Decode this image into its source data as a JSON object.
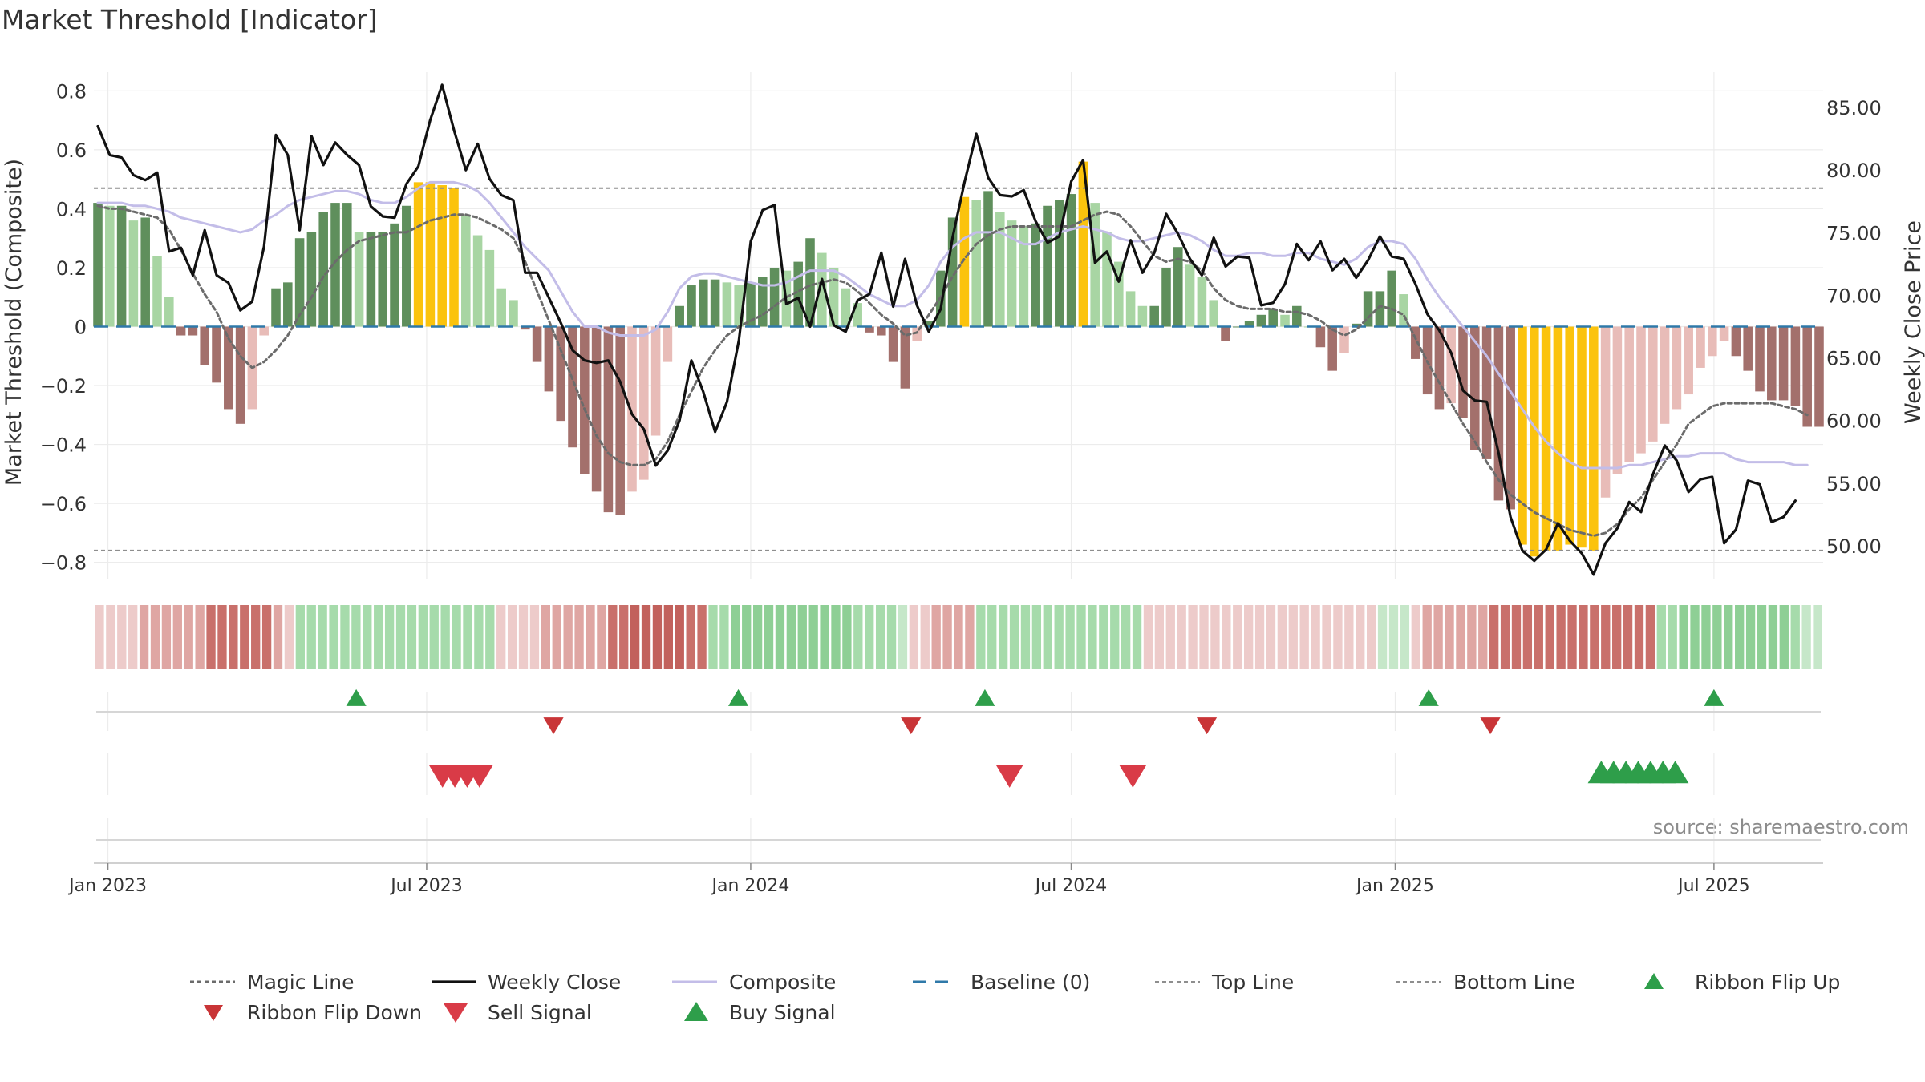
{
  "chart_data": {
    "type": "composite-indicator",
    "title": "Market Threshold [Indicator]",
    "ylabel_left": "Market Threshold (Composite)",
    "ylabel_right": "Weekly Close Price",
    "source": "source: sharemaestro.com",
    "x_range": [
      "2022-12-24",
      "2025-09-01"
    ],
    "x_ticks": [
      {
        "date": "2023-01-01",
        "label": "Jan 2023"
      },
      {
        "date": "2023-07-01",
        "label": "Jul 2023"
      },
      {
        "date": "2024-01-01",
        "label": "Jan 2024"
      },
      {
        "date": "2024-07-01",
        "label": "Jul 2024"
      },
      {
        "date": "2025-01-01",
        "label": "Jan 2025"
      },
      {
        "date": "2025-07-01",
        "label": "Jul 2025"
      }
    ],
    "y_left": {
      "range": [
        -0.85,
        0.85
      ],
      "ticks": [
        0.8,
        0.6,
        0.4,
        0.2,
        0,
        -0.2,
        -0.4,
        -0.6,
        -0.8
      ],
      "tick_labels": [
        "0.8",
        "0.6",
        "0.4",
        "0.2",
        "0",
        "−0.2",
        "−0.4",
        "−0.6",
        "−0.8"
      ]
    },
    "y_right": {
      "range": [
        47.5,
        87.5
      ],
      "ticks": [
        85,
        80,
        75,
        70,
        65,
        60,
        55,
        50
      ],
      "tick_labels": [
        "85.00",
        "80.00",
        "75.00",
        "70.00",
        "65.00",
        "60.00",
        "55.00",
        "50.00"
      ]
    },
    "top_line": 0.47,
    "bottom_line": -0.76,
    "baseline": 0,
    "composite_bars": [
      0.42,
      0.41,
      0.41,
      0.36,
      0.37,
      0.24,
      0.1,
      -0.03,
      -0.03,
      -0.13,
      -0.19,
      -0.28,
      -0.33,
      -0.28,
      -0.03,
      0.13,
      0.15,
      0.3,
      0.32,
      0.39,
      0.42,
      0.42,
      0.32,
      0.32,
      0.32,
      0.35,
      0.41,
      0.49,
      0.49,
      0.48,
      0.47,
      0.38,
      0.31,
      0.26,
      0.13,
      0.09,
      -0.01,
      -0.12,
      -0.22,
      -0.32,
      -0.41,
      -0.5,
      -0.56,
      -0.63,
      -0.64,
      -0.56,
      -0.52,
      -0.37,
      -0.12,
      0.07,
      0.14,
      0.16,
      0.16,
      0.15,
      0.14,
      0.15,
      0.17,
      0.2,
      0.19,
      0.22,
      0.3,
      0.25,
      0.2,
      0.13,
      0.08,
      -0.02,
      -0.03,
      -0.12,
      -0.21,
      -0.05,
      0.02,
      0.19,
      0.37,
      0.44,
      0.43,
      0.46,
      0.39,
      0.36,
      0.34,
      0.35,
      0.41,
      0.43,
      0.45,
      0.56,
      0.42,
      0.32,
      0.22,
      0.12,
      0.07,
      0.07,
      0.2,
      0.27,
      0.21,
      0.17,
      0.09,
      -0.05,
      0,
      0.02,
      0.04,
      0.06,
      0.04,
      0.07,
      0,
      -0.07,
      -0.15,
      -0.09,
      0.01,
      0.12,
      0.12,
      0.19,
      0.11,
      -0.11,
      -0.23,
      -0.28,
      -0.26,
      -0.31,
      -0.42,
      -0.45,
      -0.59,
      -0.62,
      -0.74,
      -0.78,
      -0.76,
      -0.76,
      -0.74,
      -0.75,
      -0.76,
      -0.58,
      -0.5,
      -0.46,
      -0.43,
      -0.39,
      -0.33,
      -0.28,
      -0.23,
      -0.14,
      -0.1,
      -0.05,
      -0.1,
      -0.15,
      -0.22,
      -0.25,
      -0.25,
      -0.27,
      -0.34,
      -0.34
    ],
    "highlight_bars": [
      27,
      28,
      29,
      30,
      73,
      83,
      120,
      121,
      122,
      123,
      124,
      125,
      126
    ],
    "composite_line": [
      0.42,
      0.42,
      0.42,
      0.41,
      0.41,
      0.4,
      0.39,
      0.37,
      0.36,
      0.35,
      0.34,
      0.33,
      0.32,
      0.33,
      0.36,
      0.38,
      0.41,
      0.43,
      0.44,
      0.45,
      0.46,
      0.46,
      0.45,
      0.43,
      0.42,
      0.42,
      0.44,
      0.47,
      0.49,
      0.49,
      0.49,
      0.48,
      0.46,
      0.42,
      0.37,
      0.32,
      0.27,
      0.23,
      0.19,
      0.12,
      0.05,
      0,
      0.0,
      -0.02,
      -0.03,
      -0.03,
      -0.03,
      -0.01,
      0.05,
      0.13,
      0.17,
      0.18,
      0.18,
      0.17,
      0.16,
      0.15,
      0.14,
      0.14,
      0.15,
      0.17,
      0.19,
      0.19,
      0.19,
      0.17,
      0.14,
      0.11,
      0.09,
      0.07,
      0.07,
      0.09,
      0.14,
      0.22,
      0.27,
      0.3,
      0.32,
      0.32,
      0.32,
      0.3,
      0.28,
      0.28,
      0.3,
      0.32,
      0.33,
      0.34,
      0.33,
      0.32,
      0.3,
      0.29,
      0.29,
      0.3,
      0.31,
      0.32,
      0.31,
      0.29,
      0.26,
      0.24,
      0.24,
      0.25,
      0.25,
      0.24,
      0.24,
      0.25,
      0.25,
      0.23,
      0.22,
      0.21,
      0.23,
      0.27,
      0.29,
      0.29,
      0.28,
      0.23,
      0.16,
      0.1,
      0.05,
      0,
      -0.05,
      -0.1,
      -0.16,
      -0.22,
      -0.28,
      -0.34,
      -0.39,
      -0.43,
      -0.46,
      -0.48,
      -0.48,
      -0.48,
      -0.48,
      -0.47,
      -0.47,
      -0.46,
      -0.45,
      -0.44,
      -0.44,
      -0.43,
      -0.43,
      -0.43,
      -0.45,
      -0.46,
      -0.46,
      -0.46,
      -0.46,
      -0.47,
      -0.47
    ],
    "magic_line": [
      0.41,
      0.4,
      0.4,
      0.39,
      0.38,
      0.37,
      0.33,
      0.26,
      0.18,
      0.11,
      0.05,
      -0.04,
      -0.1,
      -0.14,
      -0.12,
      -0.08,
      -0.03,
      0.04,
      0.1,
      0.17,
      0.22,
      0.26,
      0.29,
      0.3,
      0.31,
      0.32,
      0.32,
      0.34,
      0.36,
      0.37,
      0.38,
      0.38,
      0.37,
      0.35,
      0.33,
      0.3,
      0.22,
      0.12,
      0.02,
      -0.08,
      -0.18,
      -0.28,
      -0.37,
      -0.43,
      -0.46,
      -0.47,
      -0.47,
      -0.45,
      -0.39,
      -0.3,
      -0.22,
      -0.14,
      -0.08,
      -0.03,
      0.0,
      0.02,
      0.04,
      0.07,
      0.1,
      0.12,
      0.14,
      0.15,
      0.16,
      0.15,
      0.12,
      0.08,
      0.04,
      0.01,
      -0.03,
      -0.02,
      0.04,
      0.1,
      0.17,
      0.23,
      0.28,
      0.31,
      0.33,
      0.34,
      0.34,
      0.34,
      0.34,
      0.34,
      0.34,
      0.36,
      0.38,
      0.39,
      0.38,
      0.34,
      0.29,
      0.24,
      0.22,
      0.23,
      0.22,
      0.19,
      0.13,
      0.09,
      0.07,
      0.06,
      0.06,
      0.06,
      0.05,
      0.05,
      0.04,
      0.02,
      -0.01,
      -0.03,
      -0.01,
      0.03,
      0.07,
      0.06,
      0.04,
      -0.04,
      -0.12,
      -0.19,
      -0.26,
      -0.33,
      -0.39,
      -0.46,
      -0.52,
      -0.57,
      -0.6,
      -0.63,
      -0.65,
      -0.67,
      -0.69,
      -0.7,
      -0.71,
      -0.7,
      -0.67,
      -0.62,
      -0.58,
      -0.52,
      -0.46,
      -0.4,
      -0.33,
      -0.3,
      -0.27,
      -0.26,
      -0.26,
      -0.26,
      -0.26,
      -0.26,
      -0.27,
      -0.28,
      -0.3
    ],
    "weekly_close": [
      83.5,
      81.2,
      81.0,
      79.6,
      79.2,
      79.8,
      73.5,
      73.8,
      71.6,
      75.2,
      71.6,
      71.0,
      68.8,
      69.5,
      73.9,
      82.8,
      81.2,
      75.2,
      82.7,
      80.4,
      82.2,
      81.2,
      80.4,
      77.1,
      76.3,
      76.2,
      78.9,
      80.3,
      84.0,
      86.8,
      83.2,
      80.0,
      82.1,
      79.3,
      78.0,
      77.6,
      71.8,
      71.8,
      69.8,
      67.8,
      65.6,
      64.8,
      64.6,
      64.8,
      63.1,
      60.5,
      59.3,
      56.4,
      57.6,
      60.0,
      64.8,
      62.3,
      59.1,
      61.5,
      66.4,
      74.3,
      76.8,
      77.2,
      69.3,
      69.8,
      67.5,
      71.3,
      67.6,
      67.1,
      69.6,
      70.1,
      73.4,
      69.1,
      72.9,
      69.2,
      67.1,
      68.9,
      74.6,
      79.0,
      82.9,
      79.4,
      78.0,
      77.9,
      78.4,
      75.9,
      74.2,
      74.7,
      79.1,
      80.8,
      72.6,
      73.5,
      71.1,
      74.4,
      71.8,
      73.4,
      76.5,
      74.9,
      72.9,
      71.6,
      74.6,
      72.3,
      73.1,
      73.0,
      69.2,
      69.4,
      70.9,
      74.1,
      72.8,
      74.3,
      72.0,
      72.9,
      71.4,
      72.8,
      74.7,
      73.1,
      72.9,
      70.9,
      68.5,
      67.2,
      65.4,
      62.4,
      61.6,
      61.5,
      57.4,
      52.3,
      49.6,
      48.8,
      49.7,
      51.8,
      50.4,
      49.4,
      47.7,
      50.2,
      51.4,
      53.5,
      52.7,
      55.7,
      58.0,
      56.8,
      54.3,
      55.3,
      55.5,
      50.2,
      51.3,
      55.2,
      54.9,
      51.9,
      52.3,
      53.6
    ],
    "ribbon": {
      "colors": {
        "red_light": "#edcbca",
        "red_mid": "#dfa6a3",
        "red_dark": "#c9706b",
        "red_deep": "#c2615c",
        "green_light": "#c6e7c9",
        "green_mid": "#a6dbab",
        "green_dark": "#8ecf95"
      },
      "cells": [
        "red_light",
        "red_light",
        "red_light",
        "red_light",
        "red_mid",
        "red_mid",
        "red_mid",
        "red_mid",
        "red_mid",
        "red_mid",
        "red_dark",
        "red_dark",
        "red_dark",
        "red_dark",
        "red_dark",
        "red_dark",
        "red_mid",
        "red_light",
        "green_mid",
        "green_mid",
        "green_mid",
        "green_mid",
        "green_mid",
        "green_mid",
        "green_mid",
        "green_mid",
        "green_mid",
        "green_mid",
        "green_mid",
        "green_mid",
        "green_mid",
        "green_mid",
        "green_mid",
        "green_mid",
        "green_mid",
        "green_mid",
        "red_light",
        "red_light",
        "red_light",
        "red_light",
        "red_mid",
        "red_mid",
        "red_mid",
        "red_mid",
        "red_mid",
        "red_mid",
        "red_dark",
        "red_dark",
        "red_deep",
        "red_deep",
        "red_deep",
        "red_deep",
        "red_deep",
        "red_dark",
        "red_dark",
        "green_mid",
        "green_mid",
        "green_dark",
        "green_dark",
        "green_dark",
        "green_dark",
        "green_dark",
        "green_dark",
        "green_dark",
        "green_dark",
        "green_dark",
        "green_dark",
        "green_dark",
        "green_mid",
        "green_mid",
        "green_mid",
        "green_mid",
        "green_light",
        "red_light",
        "red_light",
        "red_mid",
        "red_mid",
        "red_mid",
        "red_mid",
        "green_mid",
        "green_mid",
        "green_mid",
        "green_mid",
        "green_mid",
        "green_mid",
        "green_mid",
        "green_mid",
        "green_mid",
        "green_mid",
        "green_mid",
        "green_mid",
        "green_mid",
        "green_mid",
        "green_mid",
        "red_light",
        "red_light",
        "red_light",
        "red_light",
        "red_light",
        "red_light",
        "red_light",
        "red_light",
        "red_light",
        "red_light",
        "red_light",
        "red_light",
        "red_light",
        "red_light",
        "red_light",
        "red_light",
        "red_light",
        "red_light",
        "red_light",
        "red_light",
        "red_light",
        "green_light",
        "green_light",
        "green_light",
        "red_light",
        "red_mid",
        "red_mid",
        "red_mid",
        "red_mid",
        "red_mid",
        "red_mid",
        "red_dark",
        "red_dark",
        "red_dark",
        "red_dark",
        "red_dark",
        "red_dark",
        "red_dark",
        "red_dark",
        "red_dark",
        "red_dark",
        "red_dark",
        "red_dark",
        "red_dark",
        "red_dark",
        "red_dark",
        "green_mid",
        "green_mid",
        "green_dark",
        "green_dark",
        "green_dark",
        "green_dark",
        "green_dark",
        "green_dark",
        "green_dark",
        "green_dark",
        "green_dark",
        "green_dark",
        "green_mid",
        "green_light",
        "green_light"
      ]
    },
    "ribbon_flip_up": [
      "2023-05-22",
      "2023-12-25",
      "2024-05-13",
      "2025-01-20",
      "2025-07-01"
    ],
    "ribbon_flip_down": [
      "2023-09-11",
      "2024-04-01",
      "2024-09-16",
      "2025-02-24"
    ],
    "sell_signals": [
      "2023-07-10",
      "2023-07-17",
      "2023-07-24",
      "2023-07-31",
      "2024-05-27",
      "2024-08-05"
    ],
    "buy_signals": [
      "2025-04-28",
      "2025-05-05",
      "2025-05-12",
      "2025-05-19",
      "2025-05-26",
      "2025-06-02",
      "2025-06-09"
    ],
    "series_colors": {
      "bar_light_green": "#a8d5a3",
      "bar_dark_green": "#5f8f5c",
      "bar_light_red": "#e8bcb8",
      "bar_dark_red": "#a3706c",
      "bar_highlight": "#fbc30d",
      "weekly_close": "#111111",
      "composite": "#c3bde8",
      "magic_line": "#6b6b6b",
      "baseline": "#2f79a9",
      "threshold": "#8e8e8e",
      "flip_up": "#2e9e4a",
      "flip_down": "#c93537",
      "sell": "#d93b47",
      "buy": "#2e9e4a"
    },
    "legend": [
      {
        "key": "magic",
        "label": "Magic Line"
      },
      {
        "key": "weekly",
        "label": "Weekly Close"
      },
      {
        "key": "composite",
        "label": "Composite"
      },
      {
        "key": "baseline",
        "label": "Baseline (0)"
      },
      {
        "key": "top",
        "label": "Top Line"
      },
      {
        "key": "bottom",
        "label": "Bottom Line"
      },
      {
        "key": "flipup",
        "label": "Ribbon Flip Up"
      },
      {
        "key": "flipdown",
        "label": "Ribbon Flip Down"
      },
      {
        "key": "sell",
        "label": "Sell Signal"
      },
      {
        "key": "buy",
        "label": "Buy Signal"
      }
    ]
  }
}
